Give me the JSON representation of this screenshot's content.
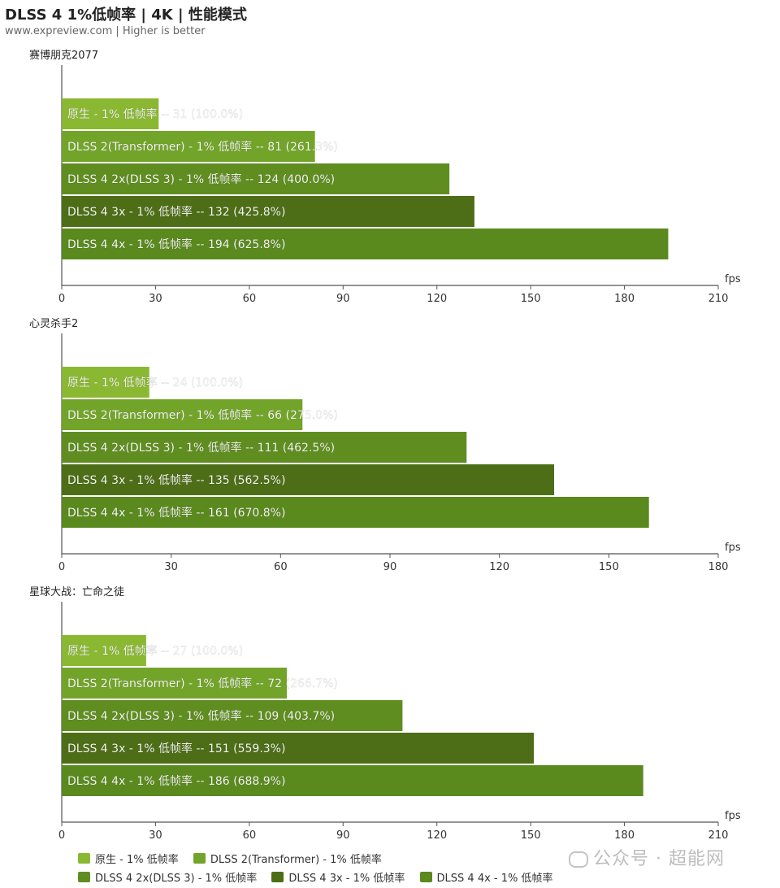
{
  "header": {
    "title": "DLSS 4 1%低帧率 | 4K | 性能模式",
    "subtitle": "www.expreview.com | Higher is better"
  },
  "watermark": "公众号 · 超能网",
  "colors": [
    "#8ab832",
    "#73a42a",
    "#5f8d20",
    "#4d6e16",
    "#5a891e"
  ],
  "legend": [
    "原生 -  1% 低帧率",
    "DLSS 2(Transformer) - 1% 低帧率",
    "DLSS 4 2x(DLSS 3)  - 1% 低帧率",
    "DLSS 4 3x  - 1% 低帧率",
    "DLSS 4 4x  - 1% 低帧率"
  ],
  "chart_data": [
    {
      "type": "bar",
      "orientation": "horizontal",
      "title": "赛博朋克2077",
      "xlabel": "fps",
      "xlim": [
        0,
        210
      ],
      "ticks": [
        0,
        30,
        60,
        90,
        120,
        150,
        180,
        210
      ],
      "values": [
        31,
        81,
        124,
        132,
        194
      ],
      "labels": [
        "原生 -  1% 低帧率  --  31 (100.0%)",
        "DLSS 2(Transformer) - 1% 低帧率  --  81 (261.3%)",
        "DLSS 4 2x(DLSS 3)  - 1% 低帧率  --  124 (400.0%)",
        "DLSS 4 3x  - 1% 低帧率  --  132 (425.8%)",
        "DLSS 4 4x  - 1% 低帧率  --  194 (625.8%)"
      ]
    },
    {
      "type": "bar",
      "orientation": "horizontal",
      "title": "心灵杀手2",
      "xlabel": "fps",
      "xlim": [
        0,
        180
      ],
      "ticks": [
        0,
        30,
        60,
        90,
        120,
        150,
        180
      ],
      "values": [
        24,
        66,
        111,
        135,
        161
      ],
      "labels": [
        "原生 -  1% 低帧率  --  24 (100.0%)",
        "DLSS 2(Transformer) - 1% 低帧率  --  66 (275.0%)",
        "DLSS 4 2x(DLSS 3)  - 1% 低帧率  --  111 (462.5%)",
        "DLSS 4 3x  - 1% 低帧率  --  135 (562.5%)",
        "DLSS 4 4x  - 1% 低帧率  --  161 (670.8%)"
      ]
    },
    {
      "type": "bar",
      "orientation": "horizontal",
      "title": "星球大战：亡命之徒",
      "xlabel": "fps",
      "xlim": [
        0,
        210
      ],
      "ticks": [
        0,
        30,
        60,
        90,
        120,
        150,
        180,
        210
      ],
      "values": [
        27,
        72,
        109,
        151,
        186
      ],
      "labels": [
        "原生 -  1% 低帧率  --  27 (100.0%)",
        "DLSS 2(Transformer) - 1% 低帧率  --  72 (266.7%)",
        "DLSS 4 2x(DLSS 3)  - 1% 低帧率  --  109 (403.7%)",
        "DLSS 4 3x  - 1% 低帧率  --  151 (559.3%)",
        "DLSS 4 4x  - 1% 低帧率  --  186 (688.9%)"
      ]
    }
  ]
}
